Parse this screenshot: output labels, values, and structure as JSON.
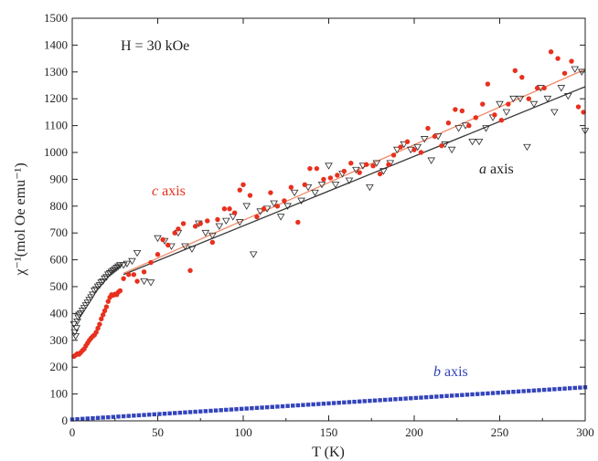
{
  "chart_data": {
    "type": "scatter",
    "title": "",
    "xlabel": "T (K)",
    "ylabel": "χ⁻¹(mol Oe emu⁻¹)",
    "xlim": [
      0,
      300
    ],
    "ylim": [
      0,
      1500
    ],
    "xticks": [
      0,
      50,
      100,
      150,
      200,
      250,
      300
    ],
    "yticks": [
      0,
      100,
      200,
      300,
      400,
      500,
      600,
      700,
      800,
      900,
      1000,
      1100,
      1200,
      1300,
      1400,
      1500
    ],
    "grid": false,
    "annotations": {
      "field": "H = 30 kOe",
      "c_axis": {
        "italic": "c",
        "text": " axis"
      },
      "a_axis": {
        "italic": "a",
        "text": " axis"
      },
      "b_axis": {
        "italic": "b",
        "text": " axis"
      }
    },
    "series": [
      {
        "key": "c",
        "color": "#e8301e",
        "marker": "circle",
        "points": [
          [
            1,
            240
          ],
          [
            2,
            245
          ],
          [
            3,
            250
          ],
          [
            4,
            248
          ],
          [
            5,
            255
          ],
          [
            6,
            262
          ],
          [
            7,
            268
          ],
          [
            8,
            280
          ],
          [
            9,
            290
          ],
          [
            10,
            300
          ],
          [
            11,
            308
          ],
          [
            12,
            315
          ],
          [
            13,
            320
          ],
          [
            14,
            330
          ],
          [
            15,
            345
          ],
          [
            16,
            360
          ],
          [
            17,
            380
          ],
          [
            18,
            395
          ],
          [
            19,
            410
          ],
          [
            20,
            425
          ],
          [
            21,
            445
          ],
          [
            22,
            460
          ],
          [
            23,
            470
          ],
          [
            24,
            468
          ],
          [
            25,
            472
          ],
          [
            26,
            470
          ],
          [
            27,
            480
          ],
          [
            28,
            485
          ],
          [
            30,
            530
          ],
          [
            33,
            545
          ],
          [
            36,
            545
          ],
          [
            38,
            520
          ],
          [
            42,
            555
          ],
          [
            46,
            590
          ],
          [
            50,
            620
          ],
          [
            53,
            675
          ],
          [
            56,
            655
          ],
          [
            60,
            700
          ],
          [
            62,
            715
          ],
          [
            65,
            735
          ],
          [
            69,
            560
          ],
          [
            72,
            725
          ],
          [
            75,
            735
          ],
          [
            79,
            745
          ],
          [
            82,
            665
          ],
          [
            85,
            750
          ],
          [
            89,
            790
          ],
          [
            92,
            790
          ],
          [
            95,
            775
          ],
          [
            98,
            860
          ],
          [
            100,
            880
          ],
          [
            104,
            840
          ],
          [
            108,
            760
          ],
          [
            112,
            790
          ],
          [
            116,
            850
          ],
          [
            120,
            800
          ],
          [
            124,
            820
          ],
          [
            128,
            870
          ],
          [
            132,
            740
          ],
          [
            136,
            880
          ],
          [
            139,
            940
          ],
          [
            143,
            940
          ],
          [
            147,
            900
          ],
          [
            151,
            905
          ],
          [
            155,
            915
          ],
          [
            159,
            930
          ],
          [
            163,
            960
          ],
          [
            168,
            925
          ],
          [
            172,
            955
          ],
          [
            176,
            950
          ],
          [
            180,
            920
          ],
          [
            185,
            955
          ],
          [
            188,
            990
          ],
          [
            192,
            1020
          ],
          [
            196,
            1040
          ],
          [
            200,
            1010
          ],
          [
            204,
            1000
          ],
          [
            208,
            1090
          ],
          [
            212,
            1060
          ],
          [
            216,
            1025
          ],
          [
            220,
            1110
          ],
          [
            224,
            1160
          ],
          [
            228,
            1155
          ],
          [
            232,
            1100
          ],
          [
            236,
            1130
          ],
          [
            240,
            1180
          ],
          [
            243,
            1255
          ],
          [
            247,
            1140
          ],
          [
            251,
            1120
          ],
          [
            255,
            1180
          ],
          [
            259,
            1305
          ],
          [
            263,
            1280
          ],
          [
            267,
            1200
          ],
          [
            272,
            1240
          ],
          [
            276,
            1240
          ],
          [
            280,
            1375
          ],
          [
            284,
            1350
          ],
          [
            288,
            1295
          ],
          [
            292,
            1340
          ],
          [
            296,
            1170
          ],
          [
            299,
            1150
          ]
        ]
      },
      {
        "key": "a",
        "color": "#2a2a2a",
        "marker": "triangle-down-open",
        "points": [
          [
            1,
            360
          ],
          [
            1.5,
            330
          ],
          [
            2,
            315
          ],
          [
            2.5,
            345
          ],
          [
            3,
            370
          ],
          [
            3.5,
            385
          ],
          [
            4,
            395
          ],
          [
            5,
            400
          ],
          [
            6,
            410
          ],
          [
            7,
            420
          ],
          [
            8,
            430
          ],
          [
            9,
            440
          ],
          [
            10,
            450
          ],
          [
            11,
            460
          ],
          [
            12,
            470
          ],
          [
            13,
            485
          ],
          [
            14,
            490
          ],
          [
            15,
            500
          ],
          [
            16,
            505
          ],
          [
            17,
            515
          ],
          [
            18,
            520
          ],
          [
            19,
            530
          ],
          [
            20,
            535
          ],
          [
            21,
            545
          ],
          [
            22,
            550
          ],
          [
            23,
            555
          ],
          [
            24,
            560
          ],
          [
            25,
            565
          ],
          [
            26,
            570
          ],
          [
            27,
            575
          ],
          [
            28,
            580
          ],
          [
            30,
            580
          ],
          [
            32,
            585
          ],
          [
            35,
            595
          ],
          [
            38,
            625
          ],
          [
            42,
            520
          ],
          [
            46,
            515
          ],
          [
            50,
            680
          ],
          [
            54,
            670
          ],
          [
            58,
            650
          ],
          [
            62,
            700
          ],
          [
            66,
            650
          ],
          [
            70,
            640
          ],
          [
            74,
            735
          ],
          [
            78,
            700
          ],
          [
            82,
            690
          ],
          [
            86,
            725
          ],
          [
            90,
            745
          ],
          [
            94,
            760
          ],
          [
            98,
            740
          ],
          [
            102,
            800
          ],
          [
            106,
            620
          ],
          [
            110,
            780
          ],
          [
            114,
            790
          ],
          [
            118,
            810
          ],
          [
            122,
            760
          ],
          [
            126,
            800
          ],
          [
            130,
            850
          ],
          [
            134,
            820
          ],
          [
            138,
            870
          ],
          [
            142,
            850
          ],
          [
            146,
            880
          ],
          [
            150,
            950
          ],
          [
            154,
            880
          ],
          [
            158,
            920
          ],
          [
            162,
            895
          ],
          [
            166,
            935
          ],
          [
            170,
            950
          ],
          [
            174,
            870
          ],
          [
            178,
            960
          ],
          [
            182,
            930
          ],
          [
            186,
            960
          ],
          [
            190,
            1010
          ],
          [
            194,
            1030
          ],
          [
            198,
            1010
          ],
          [
            202,
            1020
          ],
          [
            206,
            1050
          ],
          [
            210,
            970
          ],
          [
            214,
            1060
          ],
          [
            218,
            1030
          ],
          [
            222,
            1010
          ],
          [
            226,
            1090
          ],
          [
            230,
            1100
          ],
          [
            234,
            1040
          ],
          [
            238,
            1040
          ],
          [
            242,
            1090
          ],
          [
            246,
            1130
          ],
          [
            250,
            1180
          ],
          [
            254,
            1150
          ],
          [
            258,
            1200
          ],
          [
            262,
            1200
          ],
          [
            266,
            1020
          ],
          [
            270,
            1180
          ],
          [
            274,
            1240
          ],
          [
            278,
            1200
          ],
          [
            282,
            1150
          ],
          [
            286,
            1240
          ],
          [
            290,
            1210
          ],
          [
            294,
            1310
          ],
          [
            298,
            1300
          ],
          [
            300,
            1080
          ]
        ]
      },
      {
        "key": "b",
        "color": "#3344bb",
        "marker": "square",
        "trend": {
          "start": [
            0,
            5
          ],
          "end": [
            300,
            125
          ],
          "step": 3
        }
      }
    ],
    "fit_lines": [
      {
        "key": "c-fit",
        "color": "#f08a6a",
        "points": [
          [
            30,
            550
          ],
          [
            300,
            1310
          ]
        ]
      },
      {
        "key": "a-fit",
        "color": "#3a3a3a",
        "points": [
          [
            30,
            545
          ],
          [
            300,
            1245
          ]
        ]
      }
    ]
  }
}
